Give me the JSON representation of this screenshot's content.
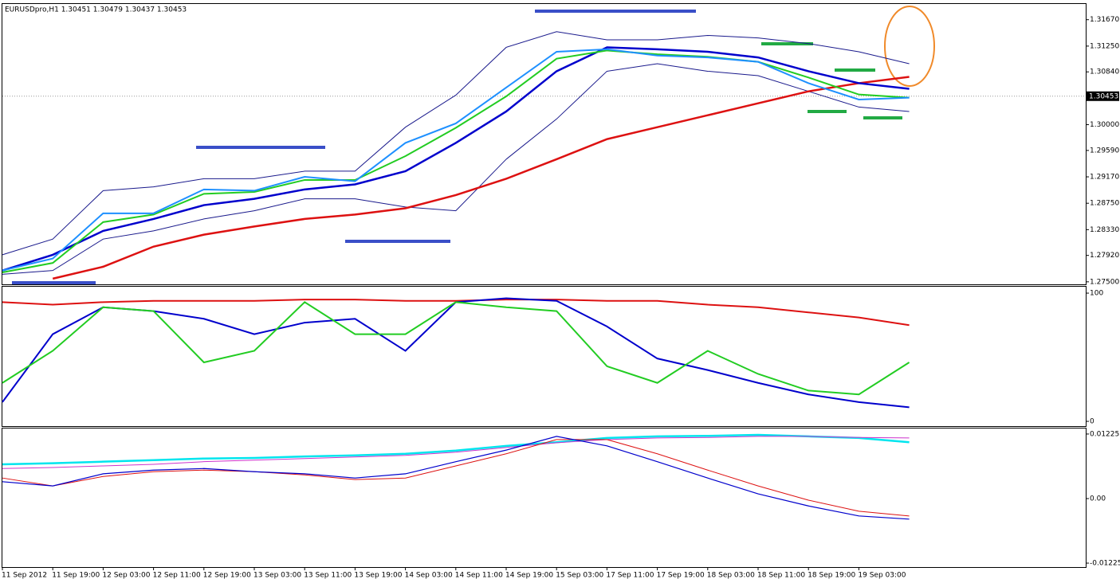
{
  "chart_data": [
    {
      "type": "line",
      "title": "EURUSDpro,H1  1.30451 1.30479 1.30437 1.30453",
      "ylim": [
        1.2746,
        1.3192
      ],
      "yticks": [
        {
          "value": 1.3167,
          "label": "1.31670"
        },
        {
          "value": 1.3125,
          "label": "1.31250"
        },
        {
          "value": 1.3084,
          "label": "1.30840"
        },
        {
          "value": 1.3,
          "label": "1.30000"
        },
        {
          "value": 1.2959,
          "label": "1.29590"
        },
        {
          "value": 1.2917,
          "label": "1.29170"
        },
        {
          "value": 1.2875,
          "label": "1.28750"
        },
        {
          "value": 1.2833,
          "label": "1.28330"
        },
        {
          "value": 1.2792,
          "label": "1.27920"
        },
        {
          "value": 1.275,
          "label": "1.27500"
        }
      ],
      "last_price": {
        "value": 1.30453,
        "label": "1.30453"
      },
      "series": [
        {
          "color": "#1a1a8c",
          "values": [
            1.2793,
            1.2818,
            1.2895,
            1.2901,
            1.2914,
            1.2914,
            1.2926,
            1.2926,
            1.2996,
            1.3047,
            1.3123,
            1.3148,
            1.3135,
            1.3135,
            1.3142,
            1.3138,
            1.3129,
            1.3116,
            1.3097
          ]
        },
        {
          "color": "#1a1a8c",
          "values": [
            1.2762,
            1.2768,
            1.2818,
            1.2831,
            1.285,
            1.2863,
            1.2882,
            1.2882,
            1.2869,
            1.2863,
            1.2945,
            1.3009,
            1.3085,
            1.3097,
            1.3085,
            1.3078,
            1.3053,
            1.3028,
            1.3021
          ]
        },
        {
          "color": "#dd1111",
          "values": [
            null,
            1.2755,
            1.2774,
            1.2806,
            1.2825,
            1.2838,
            1.285,
            1.2857,
            1.2867,
            1.2888,
            1.2914,
            1.2945,
            1.2977,
            1.2996,
            1.3015,
            1.3034,
            1.3053,
            1.3066,
            1.3076
          ]
        },
        {
          "color": "#0000cc",
          "values": [
            1.2768,
            1.2793,
            1.2831,
            1.285,
            1.2872,
            1.2882,
            1.2897,
            1.2905,
            1.2926,
            1.2971,
            1.3021,
            1.3085,
            1.3123,
            1.312,
            1.3116,
            1.3107,
            1.3085,
            1.3066,
            1.3057
          ]
        },
        {
          "color": "#22cc22",
          "values": [
            1.2765,
            1.278,
            1.2845,
            1.2857,
            1.289,
            1.2893,
            1.2912,
            1.2912,
            1.295,
            1.2995,
            1.3045,
            1.3105,
            1.3118,
            1.3112,
            1.3108,
            1.31,
            1.3075,
            1.3048,
            1.3043
          ]
        },
        {
          "color": "#1e90ff",
          "values": [
            1.2768,
            1.2787,
            1.2859,
            1.2859,
            1.2897,
            1.2895,
            1.2917,
            1.291,
            1.2971,
            1.3002,
            1.3059,
            1.3116,
            1.312,
            1.311,
            1.3107,
            1.31,
            1.3066,
            1.304,
            1.3043
          ]
        }
      ]
    },
    {
      "type": "line",
      "ylim": [
        -3.7,
        105
      ],
      "yticks": [
        0,
        100
      ],
      "series": [
        {
          "color": "#dd1111",
          "values": [
            93,
            91,
            93,
            94,
            94,
            94,
            95,
            95,
            94,
            94,
            95,
            95,
            94,
            94,
            91,
            89,
            85,
            81,
            75
          ]
        },
        {
          "color": "#0000cc",
          "values": [
            15,
            68,
            89,
            86,
            80,
            68,
            77,
            80,
            55,
            93,
            96,
            94,
            74,
            49,
            40,
            30,
            21,
            15,
            11
          ]
        },
        {
          "color": "#22cc22",
          "values": [
            30,
            55,
            89,
            86,
            46,
            55,
            93,
            68,
            68,
            93,
            89,
            86,
            43,
            30,
            55,
            37,
            24,
            21,
            46
          ]
        }
      ]
    },
    {
      "type": "line",
      "ylim": [
        -0.013,
        0.0133
      ],
      "yticks": [
        0.01225,
        {
          "value": 0,
          "label": "0.00"
        },
        -0.01225
      ],
      "categories": [
        "11 Sep 2012",
        "11 Sep 19:00",
        "12 Sep 03:00",
        "12 Sep 11:00",
        "12 Sep 19:00",
        "13 Sep 03:00",
        "13 Sep 11:00",
        "13 Sep 19:00",
        "14 Sep 03:00",
        "14 Sep 11:00",
        "14 Sep 19:00",
        "15 Sep 03:00",
        "17 Sep 11:00",
        "17 Sep 19:00",
        "18 Sep 03:00",
        "18 Sep 11:00",
        "18 Sep 19:00",
        "19 Sep 03:00",
        null
      ],
      "series": [
        {
          "color": "#00e5ee",
          "values": [
            0.0065,
            0.0067,
            0.007,
            0.0073,
            0.0076,
            0.0077,
            0.008,
            0.0082,
            0.0085,
            0.0091,
            0.01,
            0.0107,
            0.0115,
            0.0118,
            0.0119,
            0.0121,
            0.0118,
            0.0115,
            0.0107
          ]
        },
        {
          "color": "#cc33cc",
          "values": [
            0.0057,
            0.0059,
            0.0062,
            0.0065,
            0.007,
            0.0073,
            0.0076,
            0.0079,
            0.0082,
            0.0088,
            0.0097,
            0.0106,
            0.0112,
            0.0115,
            0.0116,
            0.0118,
            0.0118,
            0.0116,
            0.0115
          ]
        },
        {
          "color": "#dd1111",
          "values": [
            0.0039,
            0.0024,
            0.0042,
            0.0051,
            0.0054,
            0.0051,
            0.0045,
            0.0036,
            0.0039,
            0.0062,
            0.0085,
            0.0112,
            0.0112,
            0.0085,
            0.0054,
            0.0024,
            -0.0003,
            -0.0024,
            -0.0033
          ]
        },
        {
          "color": "#0000cc",
          "values": [
            0.0032,
            0.0024,
            0.0047,
            0.0054,
            0.0057,
            0.0051,
            0.0047,
            0.0039,
            0.0047,
            0.007,
            0.0092,
            0.0118,
            0.01,
            0.007,
            0.0039,
            0.0009,
            -0.0014,
            -0.0033,
            -0.0039
          ]
        }
      ]
    }
  ]
}
